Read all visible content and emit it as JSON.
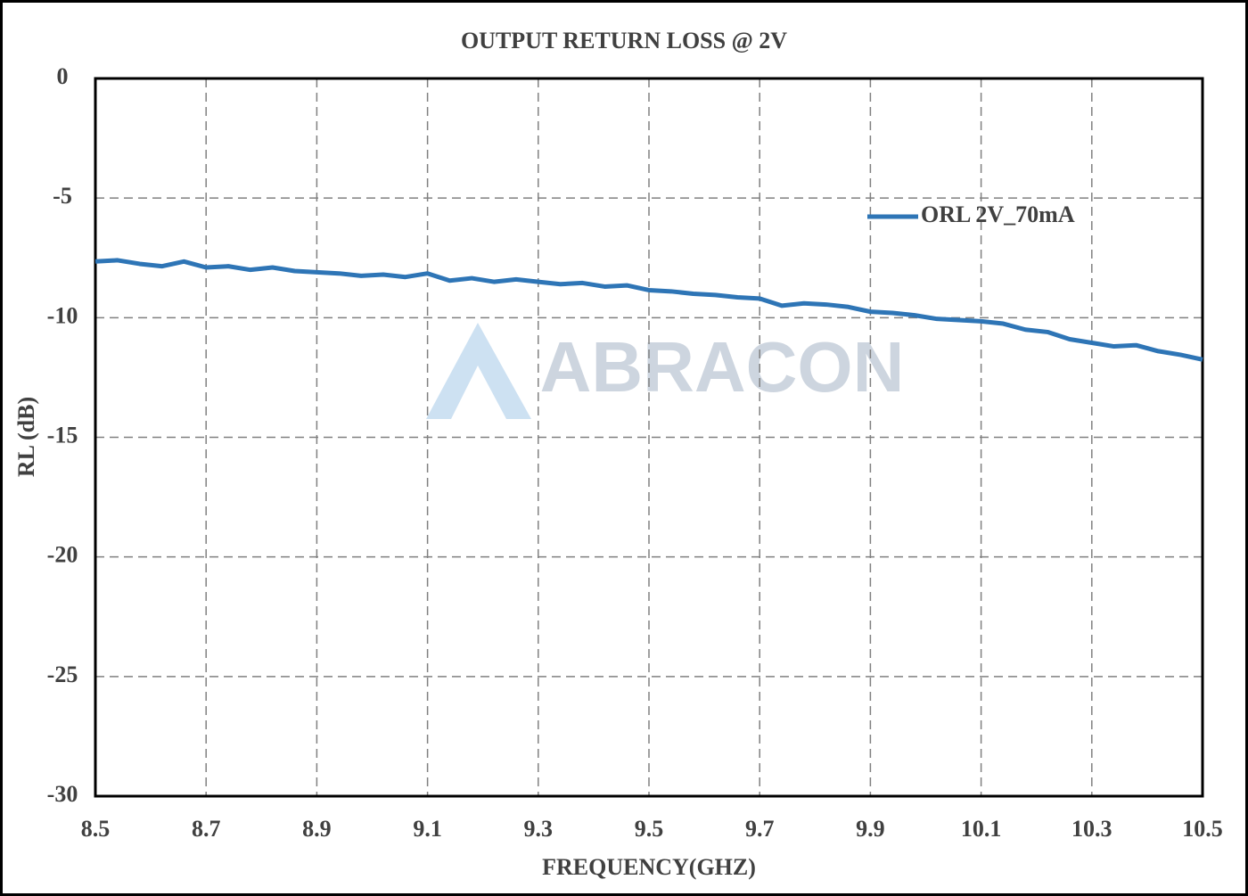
{
  "chart_data": {
    "type": "line",
    "title": "OUTPUT RETURN LOSS @ 2V",
    "x_label": "FREQUENCY(GHZ)",
    "y_label": "RL (dB)",
    "watermark": "ABRACON",
    "x": [
      8.5,
      8.54,
      8.58,
      8.62,
      8.66,
      8.7,
      8.74,
      8.78,
      8.82,
      8.86,
      8.9,
      8.94,
      8.98,
      9.02,
      9.06,
      9.1,
      9.14,
      9.18,
      9.22,
      9.26,
      9.3,
      9.34,
      9.38,
      9.42,
      9.46,
      9.5,
      9.54,
      9.58,
      9.62,
      9.66,
      9.7,
      9.74,
      9.78,
      9.82,
      9.86,
      9.9,
      9.94,
      9.98,
      10.02,
      10.06,
      10.1,
      10.14,
      10.18,
      10.22,
      10.26,
      10.3,
      10.34,
      10.38,
      10.42,
      10.46,
      10.5
    ],
    "series": [
      {
        "name": "ORL 2V_70mA",
        "color": "#2e75b6",
        "values": [
          -7.65,
          -7.6,
          -7.75,
          -7.85,
          -7.65,
          -7.9,
          -7.85,
          -8.0,
          -7.9,
          -8.05,
          -8.1,
          -8.15,
          -8.25,
          -8.2,
          -8.3,
          -8.15,
          -8.45,
          -8.35,
          -8.5,
          -8.4,
          -8.5,
          -8.6,
          -8.55,
          -8.7,
          -8.65,
          -8.85,
          -8.9,
          -9.0,
          -9.05,
          -9.15,
          -9.2,
          -9.5,
          -9.4,
          -9.45,
          -9.55,
          -9.75,
          -9.8,
          -9.9,
          -10.05,
          -10.1,
          -10.15,
          -10.25,
          -10.5,
          -10.6,
          -10.9,
          -11.05,
          -11.2,
          -11.15,
          -11.4,
          -11.55,
          -11.75
        ]
      }
    ],
    "xlim": [
      8.5,
      10.5
    ],
    "xticks": [
      8.5,
      8.7,
      8.9,
      9.1,
      9.3,
      9.5,
      9.7,
      9.9,
      10.1,
      10.3,
      10.5
    ],
    "ylim": [
      -30,
      0
    ],
    "yticks": [
      0,
      -5,
      -10,
      -15,
      -20,
      -25,
      -30
    ],
    "grid": true,
    "legend": "upper right"
  }
}
